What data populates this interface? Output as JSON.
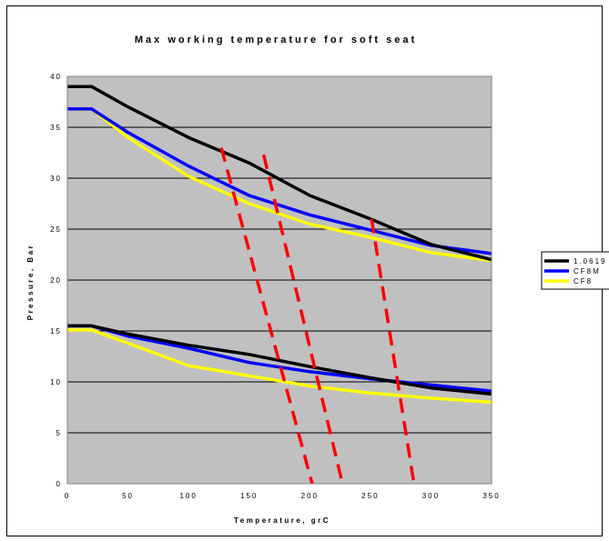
{
  "chart_data": {
    "type": "line",
    "title": "Max working temperature for soft seat",
    "xlabel": "Temperature, grC",
    "ylabel": "Pressure, Bar",
    "xlim": [
      0,
      350
    ],
    "ylim": [
      0,
      40
    ],
    "x_ticks": [
      "0",
      "50",
      "100",
      "150",
      "200",
      "250",
      "300",
      "350"
    ],
    "y_ticks": [
      "0",
      "5",
      "10",
      "15",
      "20",
      "25",
      "30",
      "35",
      "40"
    ],
    "grid": "horizontal",
    "legend_position": "right",
    "plot_background": "#c0c0c0",
    "series": [
      {
        "name": "1.0619",
        "color": "#000000",
        "group": "upper",
        "x": [
          0,
          20,
          50,
          100,
          150,
          200,
          250,
          300,
          350
        ],
        "y": [
          39,
          39,
          37,
          34,
          31.5,
          28.3,
          26,
          23.5,
          22
        ]
      },
      {
        "name": "CF8M",
        "color": "#0000ff",
        "group": "upper",
        "x": [
          0,
          20,
          50,
          100,
          150,
          200,
          250,
          300,
          350
        ],
        "y": [
          36.8,
          36.8,
          34.5,
          31.2,
          28.3,
          26.4,
          24.9,
          23.4,
          22.6
        ]
      },
      {
        "name": "CF8",
        "color": "#ffff00",
        "group": "upper",
        "x": [
          0,
          20,
          50,
          100,
          150,
          200,
          250,
          300,
          350
        ],
        "y": [
          36.8,
          36.8,
          34,
          30.2,
          27.5,
          25.5,
          24.2,
          22.7,
          21.9
        ]
      },
      {
        "name": "1.0619",
        "color": "#000000",
        "group": "lower",
        "x": [
          0,
          20,
          50,
          100,
          150,
          200,
          250,
          300,
          350
        ],
        "y": [
          15.5,
          15.5,
          14.7,
          13.6,
          12.7,
          11.5,
          10.4,
          9.4,
          8.8
        ]
      },
      {
        "name": "CF8M",
        "color": "#0000ff",
        "group": "lower",
        "x": [
          0,
          20,
          50,
          100,
          150,
          200,
          250,
          300,
          350
        ],
        "y": [
          15.5,
          15.5,
          14.5,
          13.3,
          11.9,
          11,
          10.3,
          9.7,
          9.1
        ]
      },
      {
        "name": "CF8",
        "color": "#ffff00",
        "group": "lower",
        "x": [
          0,
          20,
          50,
          100,
          150,
          200,
          250,
          300,
          350
        ],
        "y": [
          15.1,
          15.1,
          13.8,
          11.6,
          10.6,
          9.6,
          8.9,
          8.4,
          8
        ]
      }
    ],
    "annotations": [
      {
        "type": "dashed-line",
        "color": "#ff0000",
        "x": [
          127,
          202
        ],
        "y": [
          33,
          0
        ]
      },
      {
        "type": "dashed-line",
        "color": "#ff0000",
        "x": [
          162,
          227
        ],
        "y": [
          32.3,
          0
        ]
      },
      {
        "type": "dashed-line",
        "color": "#ff0000",
        "x": [
          251,
          286
        ],
        "y": [
          26,
          0
        ]
      }
    ],
    "legend": [
      {
        "label": "1.0619",
        "color": "#000000"
      },
      {
        "label": "CF8M",
        "color": "#0000ff"
      },
      {
        "label": "CF8",
        "color": "#ffff00"
      }
    ]
  }
}
